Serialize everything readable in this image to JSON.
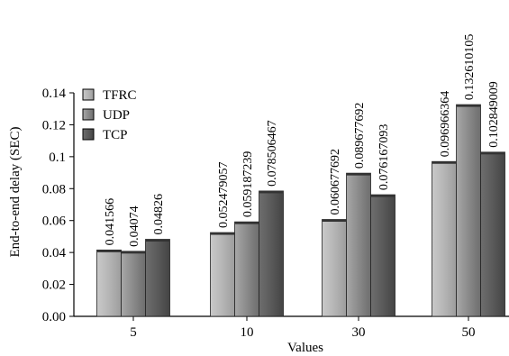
{
  "chart_data": {
    "type": "bar",
    "title": "",
    "xlabel": "Values",
    "ylabel": "End-to-end delay (SEC)",
    "categories": [
      "5",
      "10",
      "30",
      "50"
    ],
    "ylim": [
      0,
      0.14
    ],
    "yticks": [
      "0.00",
      "0.02",
      "0.04",
      "0.06",
      "0.08",
      "0.1",
      "0.12",
      "0.14"
    ],
    "legend_position": "top-left",
    "series": [
      {
        "name": "TFRC",
        "color": "#b3b3b3",
        "values": [
          0.041566,
          0.052479057,
          0.060677692,
          0.096966364
        ],
        "labels": [
          "0.041566",
          "0.052479057",
          "0.060677692",
          "0.096966364"
        ]
      },
      {
        "name": "UDP",
        "color": "#8c8c8c",
        "values": [
          0.04074,
          0.059187239,
          0.089677692,
          0.132610105
        ],
        "labels": [
          "0.04074",
          "0.059187239",
          "0.089677692",
          "0.132610105"
        ]
      },
      {
        "name": "TCP",
        "color": "#5e5e5e",
        "values": [
          0.04826,
          0.078506467,
          0.076167093,
          0.102849009
        ],
        "labels": [
          "0.04826",
          "0.078506467",
          "0.076167093",
          "0.102849009"
        ]
      }
    ]
  }
}
